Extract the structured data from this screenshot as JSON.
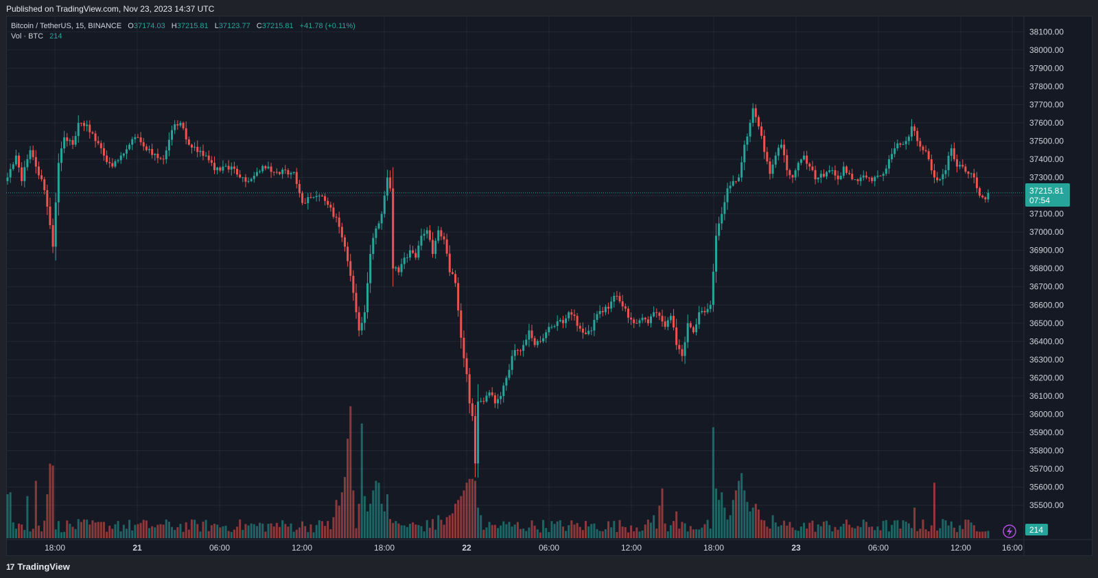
{
  "header": {
    "published": "Published on TradingView.com, Nov 23, 2023 14:37 UTC"
  },
  "legend": {
    "symbol": "Bitcoin / TetherUS, 15, BINANCE",
    "open_label": "O",
    "open": "37174.03",
    "high_label": "H",
    "high": "37215.81",
    "low_label": "L",
    "low": "37123.77",
    "close_label": "C",
    "close": "37215.81",
    "change": "+41.78 (+0.11%)",
    "vol_label": "Vol · BTC",
    "vol_value": "214"
  },
  "price_badge": {
    "price": "37215.81",
    "countdown": "07:54"
  },
  "volume_badge": "214",
  "footer": {
    "brand": "TradingView"
  },
  "colors": {
    "up": "#26a69a",
    "down": "#ef5350",
    "background": "#151924",
    "grid": "#232733"
  },
  "chart_data": {
    "type": "candlestick",
    "symbol": "BTCUSDT",
    "interval": "15",
    "ylim": [
      35410,
      38150
    ],
    "y_ticks": [
      "38100.00",
      "38000.00",
      "37900.00",
      "37800.00",
      "37700.00",
      "37600.00",
      "37500.00",
      "37400.00",
      "37300.00",
      "37200.00",
      "37100.00",
      "37000.00",
      "36900.00",
      "36800.00",
      "36700.00",
      "36600.00",
      "36500.00",
      "36400.00",
      "36300.00",
      "36200.00",
      "36100.00",
      "36000.00",
      "35900.00",
      "35800.00",
      "35700.00",
      "35600.00",
      "35500.00"
    ],
    "x_ticks": [
      "18:00",
      "21",
      "06:00",
      "12:00",
      "18:00",
      "22",
      "06:00",
      "12:00",
      "18:00",
      "23",
      "06:00",
      "12:00",
      "16:00"
    ],
    "last_price": 37215.81,
    "anchors": [
      [
        0,
        37300
      ],
      [
        3,
        37420
      ],
      [
        5,
        37280
      ],
      [
        8,
        37450
      ],
      [
        10,
        37360
      ],
      [
        12,
        37290
      ],
      [
        14,
        37140
      ],
      [
        16,
        36920
      ],
      [
        18,
        37380
      ],
      [
        20,
        37520
      ],
      [
        23,
        37480
      ],
      [
        25,
        37600
      ],
      [
        28,
        37590
      ],
      [
        31,
        37500
      ],
      [
        34,
        37420
      ],
      [
        37,
        37360
      ],
      [
        40,
        37420
      ],
      [
        43,
        37480
      ],
      [
        46,
        37520
      ],
      [
        49,
        37450
      ],
      [
        52,
        37430
      ],
      [
        55,
        37400
      ],
      [
        58,
        37560
      ],
      [
        61,
        37600
      ],
      [
        64,
        37480
      ],
      [
        67,
        37440
      ],
      [
        70,
        37420
      ],
      [
        73,
        37340
      ],
      [
        76,
        37360
      ],
      [
        79,
        37360
      ],
      [
        82,
        37300
      ],
      [
        85,
        37280
      ],
      [
        88,
        37330
      ],
      [
        92,
        37360
      ],
      [
        95,
        37330
      ],
      [
        98,
        37340
      ],
      [
        101,
        37330
      ],
      [
        104,
        37160
      ],
      [
        107,
        37190
      ],
      [
        110,
        37200
      ],
      [
        113,
        37150
      ],
      [
        116,
        37080
      ],
      [
        119,
        36920
      ],
      [
        121,
        36760
      ],
      [
        123,
        36560
      ],
      [
        124,
        36460
      ],
      [
        126,
        36560
      ],
      [
        128,
        36880
      ],
      [
        130,
        37020
      ],
      [
        132,
        37100
      ],
      [
        134,
        37300
      ],
      [
        135,
        37240
      ],
      [
        136,
        36800
      ],
      [
        138,
        36780
      ],
      [
        140,
        36860
      ],
      [
        142,
        36900
      ],
      [
        144,
        36860
      ],
      [
        146,
        36980
      ],
      [
        148,
        37010
      ],
      [
        150,
        36880
      ],
      [
        152,
        37010
      ],
      [
        154,
        36960
      ],
      [
        156,
        36780
      ],
      [
        158,
        36720
      ],
      [
        160,
        36420
      ],
      [
        162,
        36220
      ],
      [
        163,
        36060
      ],
      [
        164,
        35990
      ],
      [
        165,
        35730
      ],
      [
        166,
        36070
      ],
      [
        168,
        36070
      ],
      [
        170,
        36120
      ],
      [
        172,
        36060
      ],
      [
        174,
        36100
      ],
      [
        176,
        36200
      ],
      [
        178,
        36320
      ],
      [
        180,
        36350
      ],
      [
        182,
        36380
      ],
      [
        184,
        36460
      ],
      [
        186,
        36380
      ],
      [
        188,
        36400
      ],
      [
        190,
        36450
      ],
      [
        192,
        36480
      ],
      [
        194,
        36510
      ],
      [
        196,
        36500
      ],
      [
        198,
        36560
      ],
      [
        200,
        36540
      ],
      [
        202,
        36470
      ],
      [
        204,
        36440
      ],
      [
        206,
        36460
      ],
      [
        208,
        36550
      ],
      [
        210,
        36560
      ],
      [
        212,
        36580
      ],
      [
        214,
        36650
      ],
      [
        216,
        36620
      ],
      [
        218,
        36580
      ],
      [
        220,
        36520
      ],
      [
        222,
        36500
      ],
      [
        224,
        36530
      ],
      [
        226,
        36500
      ],
      [
        228,
        36560
      ],
      [
        230,
        36540
      ],
      [
        232,
        36480
      ],
      [
        234,
        36540
      ],
      [
        236,
        36380
      ],
      [
        238,
        36320
      ],
      [
        240,
        36500
      ],
      [
        242,
        36450
      ],
      [
        244,
        36560
      ],
      [
        246,
        36560
      ],
      [
        248,
        36600
      ],
      [
        250,
        36980
      ],
      [
        252,
        37100
      ],
      [
        254,
        37240
      ],
      [
        256,
        37280
      ],
      [
        258,
        37300
      ],
      [
        260,
        37480
      ],
      [
        262,
        37600
      ],
      [
        263,
        37680
      ],
      [
        265,
        37580
      ],
      [
        267,
        37440
      ],
      [
        269,
        37320
      ],
      [
        271,
        37420
      ],
      [
        273,
        37480
      ],
      [
        275,
        37340
      ],
      [
        277,
        37300
      ],
      [
        279,
        37380
      ],
      [
        281,
        37420
      ],
      [
        283,
        37360
      ],
      [
        285,
        37290
      ],
      [
        287,
        37320
      ],
      [
        289,
        37330
      ],
      [
        291,
        37340
      ],
      [
        293,
        37290
      ],
      [
        295,
        37360
      ],
      [
        297,
        37320
      ],
      [
        299,
        37290
      ],
      [
        301,
        37300
      ],
      [
        303,
        37300
      ],
      [
        305,
        37280
      ],
      [
        307,
        37310
      ],
      [
        309,
        37320
      ],
      [
        311,
        37400
      ],
      [
        313,
        37460
      ],
      [
        315,
        37480
      ],
      [
        317,
        37500
      ],
      [
        319,
        37580
      ],
      [
        321,
        37500
      ],
      [
        323,
        37450
      ],
      [
        325,
        37400
      ],
      [
        327,
        37300
      ],
      [
        329,
        37290
      ],
      [
        331,
        37340
      ],
      [
        333,
        37460
      ],
      [
        335,
        37360
      ],
      [
        337,
        37360
      ],
      [
        339,
        37320
      ],
      [
        341,
        37300
      ],
      [
        343,
        37200
      ],
      [
        345,
        37180
      ],
      [
        346,
        37215.81
      ]
    ],
    "volume_ylim": [
      0,
      700
    ],
    "volume_spikes": [
      [
        0,
        230
      ],
      [
        1,
        240
      ],
      [
        7,
        220
      ],
      [
        10,
        300
      ],
      [
        14,
        230
      ],
      [
        15,
        390
      ],
      [
        16,
        380
      ],
      [
        32,
        85
      ],
      [
        39,
        90
      ],
      [
        53,
        70
      ],
      [
        81,
        60
      ],
      [
        95,
        80
      ],
      [
        113,
        90
      ],
      [
        115,
        110
      ],
      [
        116,
        200
      ],
      [
        117,
        170
      ],
      [
        118,
        240
      ],
      [
        119,
        320
      ],
      [
        120,
        520
      ],
      [
        121,
        690
      ],
      [
        122,
        250
      ],
      [
        124,
        180
      ],
      [
        125,
        600
      ],
      [
        126,
        220
      ],
      [
        127,
        140
      ],
      [
        128,
        180
      ],
      [
        129,
        250
      ],
      [
        130,
        300
      ],
      [
        131,
        290
      ],
      [
        132,
        180
      ],
      [
        133,
        140
      ],
      [
        134,
        230
      ],
      [
        135,
        100
      ],
      [
        136,
        80
      ],
      [
        150,
        100
      ],
      [
        152,
        120
      ],
      [
        155,
        110
      ],
      [
        156,
        120
      ],
      [
        157,
        130
      ],
      [
        158,
        180
      ],
      [
        159,
        200
      ],
      [
        160,
        220
      ],
      [
        161,
        250
      ],
      [
        162,
        290
      ],
      [
        163,
        310
      ],
      [
        164,
        310
      ],
      [
        165,
        300
      ],
      [
        166,
        160
      ],
      [
        167,
        120
      ],
      [
        228,
        120
      ],
      [
        230,
        170
      ],
      [
        231,
        260
      ],
      [
        236,
        140
      ],
      [
        249,
        580
      ],
      [
        250,
        260
      ],
      [
        251,
        200
      ],
      [
        252,
        240
      ],
      [
        253,
        160
      ],
      [
        255,
        120
      ],
      [
        256,
        200
      ],
      [
        257,
        250
      ],
      [
        258,
        300
      ],
      [
        259,
        340
      ],
      [
        260,
        250
      ],
      [
        261,
        190
      ],
      [
        262,
        140
      ],
      [
        263,
        160
      ],
      [
        264,
        180
      ],
      [
        265,
        150
      ],
      [
        270,
        120
      ],
      [
        320,
        160
      ],
      [
        327,
        290
      ],
      [
        330,
        100
      ]
    ]
  }
}
